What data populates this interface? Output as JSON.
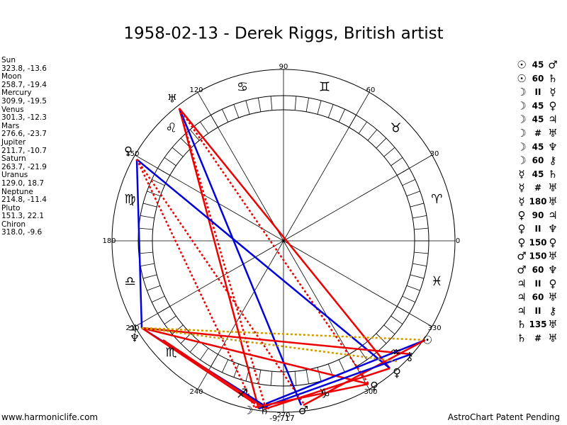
{
  "title": "1958-02-13 - Derek Riggs, British artist",
  "planets": [
    {
      "name": "Sun",
      "coords": "323.8, -13.6"
    },
    {
      "name": "Moon",
      "coords": "258.7, -19.4"
    },
    {
      "name": "Mercury",
      "coords": "309.9, -19.5"
    },
    {
      "name": "Venus",
      "coords": "301.3, -12.3"
    },
    {
      "name": "Mars",
      "coords": "276.6, -23.7"
    },
    {
      "name": "Jupiter",
      "coords": "211.7, -10.7"
    },
    {
      "name": "Saturn",
      "coords": "263.7, -21.9"
    },
    {
      "name": "Uranus",
      "coords": "129.0, 18.7"
    },
    {
      "name": "Neptune",
      "coords": "214.8, -11.4"
    },
    {
      "name": "Pluto",
      "coords": "151.3, 22.1"
    },
    {
      "name": "Chiron",
      "coords": "318.0, -9.6"
    }
  ],
  "aspects": [
    {
      "from": "☉",
      "aspect": "45",
      "to": "♂"
    },
    {
      "from": "☉",
      "aspect": "60",
      "to": "♄"
    },
    {
      "from": "☽",
      "aspect": "II",
      "to": "☿"
    },
    {
      "from": "☽",
      "aspect": "45",
      "to": "♀"
    },
    {
      "from": "☽",
      "aspect": "45",
      "to": "♃"
    },
    {
      "from": "☽",
      "aspect": "#",
      "to": "♅"
    },
    {
      "from": "☽",
      "aspect": "45",
      "to": "♆"
    },
    {
      "from": "☽",
      "aspect": "60",
      "to": "⚷"
    },
    {
      "from": "☿",
      "aspect": "45",
      "to": "♄"
    },
    {
      "from": "☿",
      "aspect": "#",
      "to": "♅"
    },
    {
      "from": "☿",
      "aspect": "180",
      "to": "♅"
    },
    {
      "from": "♀",
      "aspect": "90",
      "to": "♃"
    },
    {
      "from": "♀",
      "aspect": "II",
      "to": "♆"
    },
    {
      "from": "♀",
      "aspect": "150",
      "to": "♀"
    },
    {
      "from": "♂",
      "aspect": "150",
      "to": "♅"
    },
    {
      "from": "♂",
      "aspect": "60",
      "to": "♆"
    },
    {
      "from": "♃",
      "aspect": "II",
      "to": "♀"
    },
    {
      "from": "♃",
      "aspect": "60",
      "to": "♅"
    },
    {
      "from": "♃",
      "aspect": "II",
      "to": "⚷"
    },
    {
      "from": "♄",
      "aspect": "135",
      "to": "♅"
    },
    {
      "from": "♄",
      "aspect": "#",
      "to": "♅"
    }
  ],
  "degree_labels": [
    "0",
    "30",
    "60",
    "90",
    "120",
    "150",
    "180",
    "210",
    "240",
    "270",
    "300",
    "330"
  ],
  "zodiac": [
    "♈",
    "♉",
    "♊",
    "♋",
    "♌",
    "♍",
    "♎",
    "♏",
    "♐",
    "♑",
    "♒",
    "♓"
  ],
  "planet_markers": [
    "♅",
    "♀",
    "♃",
    "♆",
    "☉",
    "⚷",
    "♀",
    "♀",
    "☽",
    "♄",
    "♂"
  ],
  "wheel_note": "-9,717",
  "footer": {
    "left": "www.harmoniclife.com",
    "right": "AstroChart Patent Pending"
  }
}
